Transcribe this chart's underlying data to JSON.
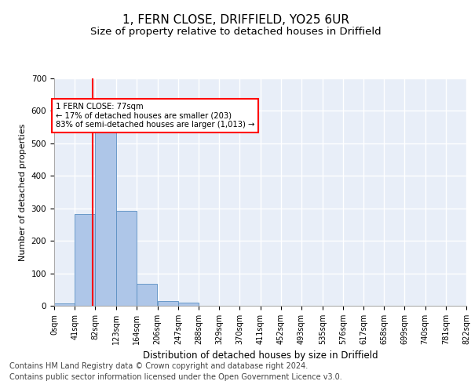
{
  "title": "1, FERN CLOSE, DRIFFIELD, YO25 6UR",
  "subtitle": "Size of property relative to detached houses in Driffield",
  "xlabel": "Distribution of detached houses by size in Driffield",
  "ylabel": "Number of detached properties",
  "bar_color": "#aec6e8",
  "bar_edge_color": "#5a8fc2",
  "background_color": "#e8eef8",
  "grid_color": "#ffffff",
  "property_line_x": 77,
  "property_line_color": "red",
  "annotation_text": "1 FERN CLOSE: 77sqm\n← 17% of detached houses are smaller (203)\n83% of semi-detached houses are larger (1,013) →",
  "annotation_box_color": "red",
  "bins": [
    0,
    41,
    82,
    123,
    164,
    206,
    247,
    288,
    329,
    370,
    411,
    452,
    493,
    535,
    576,
    617,
    658,
    699,
    740,
    781,
    822
  ],
  "counts": [
    8,
    283,
    560,
    293,
    68,
    14,
    10,
    0,
    0,
    0,
    0,
    0,
    0,
    0,
    0,
    0,
    0,
    0,
    0,
    0
  ],
  "ylim": [
    0,
    700
  ],
  "yticks": [
    0,
    100,
    200,
    300,
    400,
    500,
    600,
    700
  ],
  "footer_line1": "Contains HM Land Registry data © Crown copyright and database right 2024.",
  "footer_line2": "Contains public sector information licensed under the Open Government Licence v3.0.",
  "title_fontsize": 11,
  "subtitle_fontsize": 9.5,
  "footer_fontsize": 7,
  "tick_fontsize": 7,
  "ylabel_fontsize": 8,
  "xlabel_fontsize": 8.5
}
